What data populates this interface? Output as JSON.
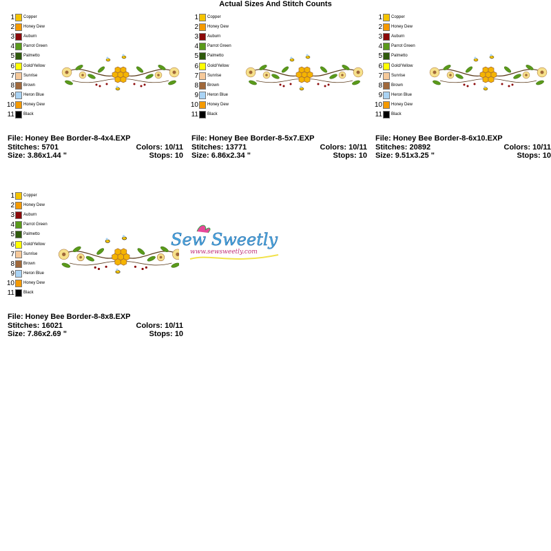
{
  "title": "Actual Sizes And Stitch Counts",
  "designs": [
    {
      "palette": [
        {
          "number": 1,
          "name": "Copper",
          "color": "#f5c400"
        },
        {
          "number": 2,
          "name": "Honey Dew",
          "color": "#f59a00"
        },
        {
          "number": 3,
          "name": "Auburn",
          "color": "#8c0a0a"
        },
        {
          "number": 4,
          "name": "Parrot Green",
          "color": "#5a9a1a"
        },
        {
          "number": 5,
          "name": "Palmetto",
          "color": "#2f5a0c"
        },
        {
          "number": 6,
          "name": "Gold/Yellow",
          "color": "#ffff00"
        },
        {
          "number": 7,
          "name": "Sunrise",
          "color": "#f6c99a"
        },
        {
          "number": 8,
          "name": "Brown",
          "color": "#a0683a"
        },
        {
          "number": 9,
          "name": "Heron Blue",
          "color": "#a9d3f5"
        },
        {
          "number": 10,
          "name": "Honey Dew",
          "color": "#f59a00"
        },
        {
          "number": 11,
          "name": "Black",
          "color": "#000000"
        }
      ],
      "file": "File: Honey Bee Border-8-4x4.EXP",
      "stitches": "Stitches: 5701",
      "colors": "Colors: 10/11",
      "size": "Size: 3.86x1.44 \"",
      "stops": "Stops: 10"
    },
    {
      "palette": [
        {
          "number": 1,
          "name": "Copper",
          "color": "#f5c400"
        },
        {
          "number": 2,
          "name": "Honey Dew",
          "color": "#f59a00"
        },
        {
          "number": 3,
          "name": "Auburn",
          "color": "#8c0a0a"
        },
        {
          "number": 4,
          "name": "Parrot Green",
          "color": "#5a9a1a"
        },
        {
          "number": 5,
          "name": "Palmetto",
          "color": "#2f5a0c"
        },
        {
          "number": 6,
          "name": "Gold/Yellow",
          "color": "#ffff00"
        },
        {
          "number": 7,
          "name": "Sunrise",
          "color": "#f6c99a"
        },
        {
          "number": 8,
          "name": "Brown",
          "color": "#a0683a"
        },
        {
          "number": 9,
          "name": "Heron Blue",
          "color": "#a9d3f5"
        },
        {
          "number": 10,
          "name": "Honey Dew",
          "color": "#f59a00"
        },
        {
          "number": 11,
          "name": "Black",
          "color": "#000000"
        }
      ],
      "file": "File: Honey Bee Border-8-5x7.EXP",
      "stitches": "Stitches: 13771",
      "colors": "Colors: 10/11",
      "size": "Size: 6.86x2.34 \"",
      "stops": "Stops: 10"
    },
    {
      "palette": [
        {
          "number": 1,
          "name": "Copper",
          "color": "#f5c400"
        },
        {
          "number": 2,
          "name": "Honey Dew",
          "color": "#f59a00"
        },
        {
          "number": 3,
          "name": "Auburn",
          "color": "#8c0a0a"
        },
        {
          "number": 4,
          "name": "Parrot Green",
          "color": "#5a9a1a"
        },
        {
          "number": 5,
          "name": "Palmetto",
          "color": "#2f5a0c"
        },
        {
          "number": 6,
          "name": "Gold/Yellow",
          "color": "#ffff00"
        },
        {
          "number": 7,
          "name": "Sunrise",
          "color": "#f6c99a"
        },
        {
          "number": 8,
          "name": "Brown",
          "color": "#a0683a"
        },
        {
          "number": 9,
          "name": "Heron Blue",
          "color": "#a9d3f5"
        },
        {
          "number": 10,
          "name": "Honey Dew",
          "color": "#f59a00"
        },
        {
          "number": 11,
          "name": "Black",
          "color": "#000000"
        }
      ],
      "file": "File: Honey Bee Border-8-6x10.EXP",
      "stitches": "Stitches: 20892",
      "colors": "Colors: 10/11",
      "size": "Size: 9.51x3.25 \"",
      "stops": "Stops: 10"
    },
    {
      "palette": [
        {
          "number": 1,
          "name": "Copper",
          "color": "#f5c400"
        },
        {
          "number": 2,
          "name": "Honey Dew",
          "color": "#f59a00"
        },
        {
          "number": 3,
          "name": "Auburn",
          "color": "#8c0a0a"
        },
        {
          "number": 4,
          "name": "Parrot Green",
          "color": "#5a9a1a"
        },
        {
          "number": 5,
          "name": "Palmetto",
          "color": "#2f5a0c"
        },
        {
          "number": 6,
          "name": "Gold/Yellow",
          "color": "#ffff00"
        },
        {
          "number": 7,
          "name": "Sunrise",
          "color": "#f6c99a"
        },
        {
          "number": 8,
          "name": "Brown",
          "color": "#a0683a"
        },
        {
          "number": 9,
          "name": "Heron Blue",
          "color": "#a9d3f5"
        },
        {
          "number": 10,
          "name": "Honey Dew",
          "color": "#f59a00"
        },
        {
          "number": 11,
          "name": "Black",
          "color": "#000000"
        }
      ],
      "file": "File: Honey Bee Border-8-8x8.EXP",
      "stitches": "Stitches: 16021",
      "colors": "Colors: 10/11",
      "size": "Size: 7.86x2.69 \"",
      "stops": "Stops: 10"
    }
  ],
  "watermark": {
    "brand": "Sew Sweetly",
    "url": "www.sewsweetly.com"
  }
}
